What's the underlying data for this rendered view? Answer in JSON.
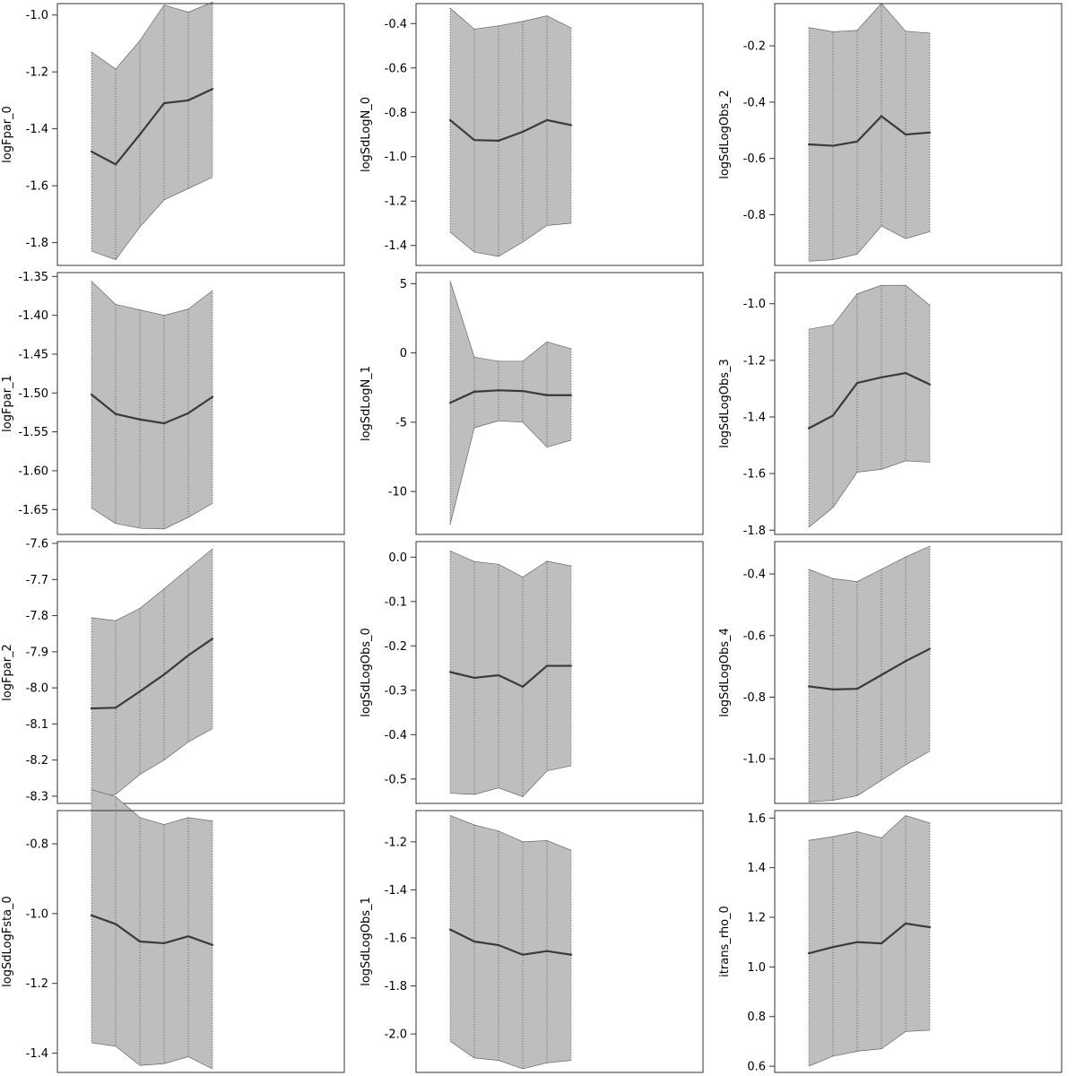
{
  "style": {
    "band_fill": "#bebebe",
    "band_edge": "#555555",
    "line_color": "#3a3a3a",
    "frame_color": "#333333"
  },
  "chart_data": [
    {
      "type": "line",
      "ylabel": "logFpar_0",
      "ylim": [
        -1.88,
        -0.96
      ],
      "yticks": [
        -1.8,
        -1.6,
        -1.4,
        -1.2,
        -1.0
      ],
      "yticklabels": [
        "-1.8",
        "-1.6",
        "-1.4",
        "-1.2",
        "-1.0"
      ],
      "estimate": [
        -1.48,
        -1.525,
        -1.42,
        -1.31,
        -1.3,
        -1.26
      ],
      "lower": [
        -1.83,
        -1.86,
        -1.745,
        -1.65,
        -1.61,
        -1.57
      ],
      "upper": [
        -1.13,
        -1.19,
        -1.09,
        -0.965,
        -0.99,
        -0.955
      ]
    },
    {
      "type": "line",
      "ylabel": "logSdLogN_0",
      "ylim": [
        -1.49,
        -0.31
      ],
      "yticks": [
        -1.4,
        -1.2,
        -1.0,
        -0.8,
        -0.6,
        -0.4
      ],
      "yticklabels": [
        "-1.4",
        "-1.2",
        "-1.0",
        "-0.8",
        "-0.6",
        "-0.4"
      ],
      "estimate": [
        -0.835,
        -0.925,
        -0.928,
        -0.888,
        -0.835,
        -0.858
      ],
      "lower": [
        -1.34,
        -1.43,
        -1.45,
        -1.385,
        -1.31,
        -1.3
      ],
      "upper": [
        -0.33,
        -0.425,
        -0.41,
        -0.39,
        -0.365,
        -0.42
      ]
    },
    {
      "type": "line",
      "ylabel": "logSdLogObs_2",
      "ylim": [
        -0.98,
        -0.05
      ],
      "yticks": [
        -0.8,
        -0.6,
        -0.4,
        -0.2
      ],
      "yticklabels": [
        "-0.8",
        "-0.6",
        "-0.4",
        "-0.2"
      ],
      "estimate": [
        -0.55,
        -0.555,
        -0.54,
        -0.45,
        -0.515,
        -0.508
      ],
      "lower": [
        -0.965,
        -0.96,
        -0.94,
        -0.84,
        -0.885,
        -0.86
      ],
      "upper": [
        -0.135,
        -0.15,
        -0.145,
        -0.05,
        -0.148,
        -0.155
      ]
    },
    {
      "type": "line",
      "ylabel": "logFpar_1",
      "ylim": [
        -1.682,
        -1.345
      ],
      "yticks": [
        -1.65,
        -1.6,
        -1.55,
        -1.5,
        -1.45,
        -1.4,
        -1.35
      ],
      "yticklabels": [
        "-1.65",
        "-1.60",
        "-1.55",
        "-1.50",
        "-1.45",
        "-1.40",
        "-1.35"
      ],
      "estimate": [
        -1.502,
        -1.527,
        -1.534,
        -1.539,
        -1.526,
        -1.505
      ],
      "lower": [
        -1.648,
        -1.668,
        -1.674,
        -1.675,
        -1.66,
        -1.642
      ],
      "upper": [
        -1.356,
        -1.386,
        -1.393,
        -1.4,
        -1.392,
        -1.368
      ]
    },
    {
      "type": "line",
      "ylabel": "logSdLogN_1",
      "ylim": [
        -13.1,
        5.8
      ],
      "yticks": [
        -10,
        -5,
        0,
        5
      ],
      "yticklabels": [
        "-10",
        "-5",
        "0",
        "5"
      ],
      "estimate": [
        -3.6,
        -2.8,
        -2.7,
        -2.75,
        -3.05,
        -3.05
      ],
      "lower": [
        -12.4,
        -5.4,
        -4.9,
        -5.0,
        -6.8,
        -6.3
      ],
      "upper": [
        5.2,
        -0.3,
        -0.6,
        -0.6,
        0.8,
        0.3
      ]
    },
    {
      "type": "line",
      "ylabel": "logSdLogObs_3",
      "ylim": [
        -1.815,
        -0.89
      ],
      "yticks": [
        -1.8,
        -1.6,
        -1.4,
        -1.2,
        -1.0
      ],
      "yticklabels": [
        "-1.8",
        "-1.6",
        "-1.4",
        "-1.2",
        "-1.0"
      ],
      "estimate": [
        -1.44,
        -1.395,
        -1.28,
        -1.26,
        -1.245,
        -1.285
      ],
      "lower": [
        -1.79,
        -1.72,
        -1.595,
        -1.585,
        -1.555,
        -1.56
      ],
      "upper": [
        -1.09,
        -1.075,
        -0.965,
        -0.935,
        -0.935,
        -1.005
      ]
    },
    {
      "type": "line",
      "ylabel": "logFpar_2",
      "ylim": [
        -8.32,
        -7.595
      ],
      "yticks": [
        -8.3,
        -8.2,
        -8.1,
        -8.0,
        -7.9,
        -7.8,
        -7.7,
        -7.6
      ],
      "yticklabels": [
        "-8.3",
        "-8.2",
        "-8.1",
        "-8.0",
        "-7.9",
        "-7.8",
        "-7.7",
        "-7.6"
      ],
      "estimate": [
        -8.057,
        -8.055,
        -8.01,
        -7.963,
        -7.91,
        -7.864
      ],
      "lower": [
        -8.307,
        -8.295,
        -8.24,
        -8.2,
        -8.15,
        -8.113
      ],
      "upper": [
        -7.806,
        -7.814,
        -7.78,
        -7.726,
        -7.67,
        -7.615
      ]
    },
    {
      "type": "line",
      "ylabel": "logSdLogObs_0",
      "ylim": [
        -0.555,
        0.035
      ],
      "yticks": [
        -0.5,
        -0.4,
        -0.3,
        -0.2,
        -0.1,
        0.0
      ],
      "yticklabels": [
        "-0.5",
        "-0.4",
        "-0.3",
        "-0.2",
        "-0.1",
        "0.0"
      ],
      "estimate": [
        -0.259,
        -0.272,
        -0.266,
        -0.292,
        -0.245,
        -0.245
      ],
      "lower": [
        -0.532,
        -0.535,
        -0.52,
        -0.54,
        -0.482,
        -0.47
      ],
      "upper": [
        0.014,
        -0.01,
        -0.016,
        -0.045,
        -0.009,
        -0.02
      ]
    },
    {
      "type": "line",
      "ylabel": "logSdLogObs_4",
      "ylim": [
        -1.145,
        -0.295
      ],
      "yticks": [
        -1.0,
        -0.8,
        -0.6,
        -0.4
      ],
      "yticklabels": [
        "-1.0",
        "-0.8",
        "-0.6",
        "-0.4"
      ],
      "estimate": [
        -0.765,
        -0.775,
        -0.773,
        -0.728,
        -0.683,
        -0.643
      ],
      "lower": [
        -1.14,
        -1.135,
        -1.12,
        -1.07,
        -1.02,
        -0.975
      ],
      "upper": [
        -0.385,
        -0.415,
        -0.425,
        -0.385,
        -0.345,
        -0.31
      ]
    },
    {
      "type": "line",
      "ylabel": "logSdLogFsta_0",
      "ylim": [
        -1.455,
        -0.705
      ],
      "yticks": [
        -1.4,
        -1.2,
        -1.0,
        -0.8
      ],
      "yticklabels": [
        "-1.4",
        "-1.2",
        "-1.0",
        "-0.8"
      ],
      "estimate": [
        -1.005,
        -1.03,
        -1.08,
        -1.085,
        -1.065,
        -1.09
      ],
      "lower": [
        -1.37,
        -1.38,
        -1.435,
        -1.43,
        -1.41,
        -1.445
      ],
      "upper": [
        -0.645,
        -0.665,
        -0.725,
        -0.745,
        -0.725,
        -0.735
      ]
    },
    {
      "type": "line",
      "ylabel": "logSdLogObs_1",
      "ylim": [
        -2.16,
        -1.07
      ],
      "yticks": [
        -2.0,
        -1.8,
        -1.6,
        -1.4,
        -1.2
      ],
      "yticklabels": [
        "-2.0",
        "-1.8",
        "-1.6",
        "-1.4",
        "-1.2"
      ],
      "estimate": [
        -1.565,
        -1.615,
        -1.63,
        -1.67,
        -1.655,
        -1.67
      ],
      "lower": [
        -2.03,
        -2.1,
        -2.11,
        -2.145,
        -2.12,
        -2.11
      ],
      "upper": [
        -1.09,
        -1.13,
        -1.155,
        -1.2,
        -1.195,
        -1.235
      ]
    },
    {
      "type": "line",
      "ylabel": "itrans_rho_0",
      "ylim": [
        0.575,
        1.63
      ],
      "yticks": [
        0.6,
        0.8,
        1.0,
        1.2,
        1.4,
        1.6
      ],
      "yticklabels": [
        "0.6",
        "0.8",
        "1.0",
        "1.2",
        "1.4",
        "1.6"
      ],
      "estimate": [
        1.055,
        1.08,
        1.1,
        1.095,
        1.175,
        1.16
      ],
      "lower": [
        0.6,
        0.64,
        0.66,
        0.67,
        0.74,
        0.745
      ],
      "upper": [
        1.51,
        1.525,
        1.545,
        1.52,
        1.61,
        1.58
      ]
    }
  ]
}
